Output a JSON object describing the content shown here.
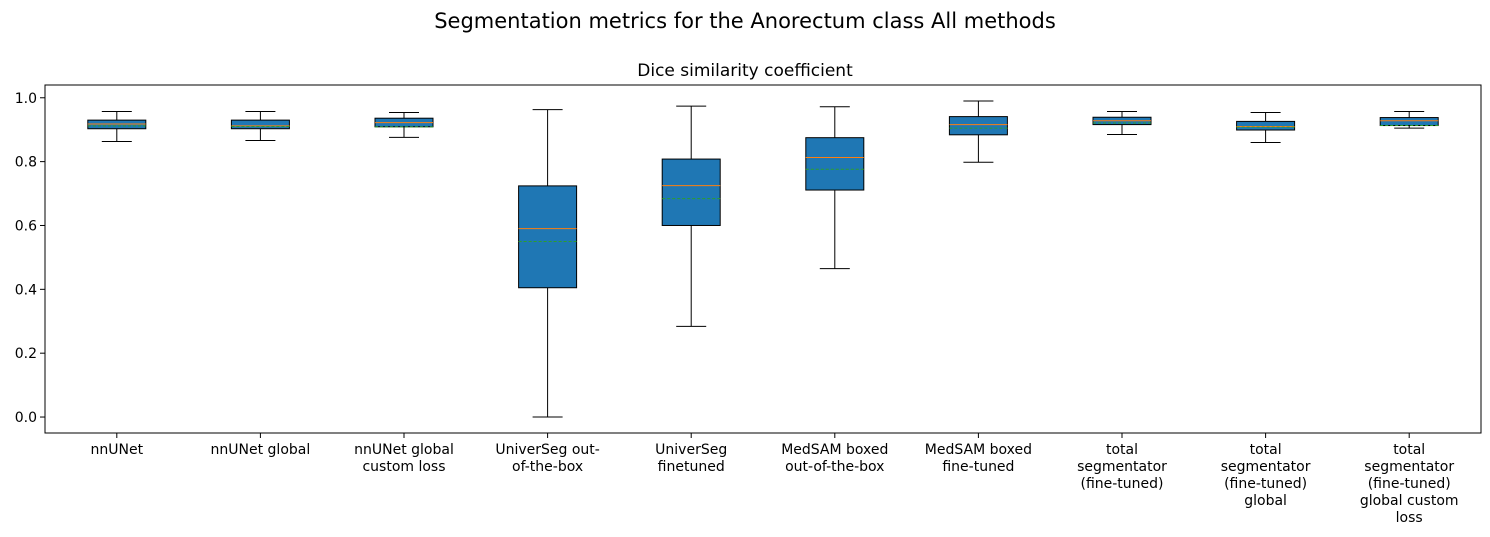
{
  "chart_data": {
    "type": "boxplot",
    "suptitle": "Segmentation metrics for the Anorectum class All methods",
    "title": "Dice similarity coefficient",
    "ylim": [
      -0.05,
      1.04
    ],
    "yticks": [
      0.0,
      0.2,
      0.4,
      0.6,
      0.8,
      1.0
    ],
    "grid": false,
    "colors": {
      "box": "#1f77b4",
      "median": "#ff7f0e",
      "mean": "#2ca02c",
      "edge": "#000000"
    },
    "categories": [
      [
        "nnUNet"
      ],
      [
        "nnUNet global"
      ],
      [
        "nnUNet global",
        "custom loss"
      ],
      [
        "UniverSeg out-",
        "of-the-box"
      ],
      [
        "UniverSeg",
        "finetuned"
      ],
      [
        "MedSAM boxed",
        "out-of-the-box"
      ],
      [
        "MedSAM boxed",
        "fine-tuned"
      ],
      [
        "total",
        "segmentator",
        "(fine-tuned)"
      ],
      [
        "total",
        "segmentator",
        "(fine-tuned)",
        "global"
      ],
      [
        "total",
        "segmentator",
        "(fine-tuned)",
        "global custom",
        "loss"
      ]
    ],
    "boxes": [
      {
        "whisker_low": 0.863,
        "q1": 0.903,
        "median": 0.918,
        "mean": 0.912,
        "q3": 0.93,
        "whisker_high": 0.957
      },
      {
        "whisker_low": 0.866,
        "q1": 0.903,
        "median": 0.912,
        "mean": 0.91,
        "q3": 0.93,
        "whisker_high": 0.957
      },
      {
        "whisker_low": 0.876,
        "q1": 0.909,
        "median": 0.922,
        "mean": 0.909,
        "q3": 0.936,
        "whisker_high": 0.954
      },
      {
        "whisker_low": 0.0,
        "q1": 0.405,
        "median": 0.59,
        "mean": 0.55,
        "q3": 0.724,
        "whisker_high": 0.963
      },
      {
        "whisker_low": 0.284,
        "q1": 0.6,
        "median": 0.725,
        "mean": 0.684,
        "q3": 0.808,
        "whisker_high": 0.974
      },
      {
        "whisker_low": 0.465,
        "q1": 0.711,
        "median": 0.813,
        "mean": 0.776,
        "q3": 0.875,
        "whisker_high": 0.972
      },
      {
        "whisker_low": 0.798,
        "q1": 0.884,
        "median": 0.916,
        "mean": 0.905,
        "q3": 0.941,
        "whisker_high": 0.99
      },
      {
        "whisker_low": 0.885,
        "q1": 0.916,
        "median": 0.928,
        "mean": 0.921,
        "q3": 0.939,
        "whisker_high": 0.957
      },
      {
        "whisker_low": 0.86,
        "q1": 0.899,
        "median": 0.91,
        "mean": 0.908,
        "q3": 0.926,
        "whisker_high": 0.954
      },
      {
        "whisker_low": 0.905,
        "q1": 0.913,
        "median": 0.928,
        "mean": 0.913,
        "q3": 0.938,
        "whisker_high": 0.957
      }
    ]
  }
}
